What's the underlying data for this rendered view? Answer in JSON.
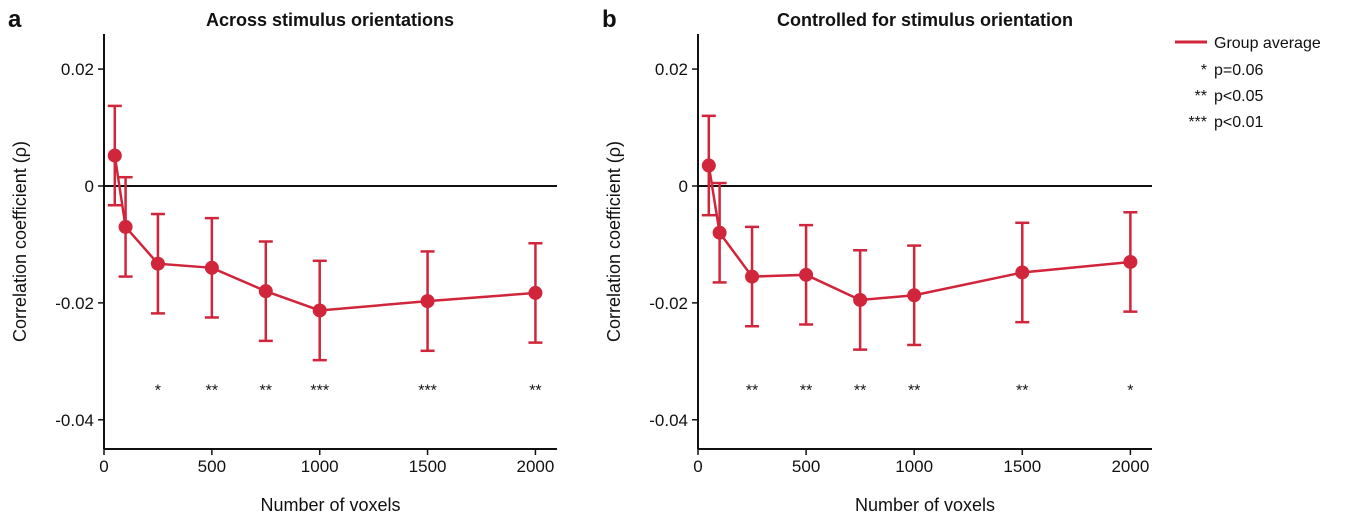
{
  "legend": {
    "series_label": "Group average",
    "sig_entries": [
      {
        "marker": "*",
        "text": "p=0.06"
      },
      {
        "marker": "**",
        "text": "p<0.05"
      },
      {
        "marker": "***",
        "text": "p<0.01"
      }
    ]
  },
  "colors": {
    "series": "#d0253a",
    "axis": "#111111"
  },
  "chart_data": [
    {
      "type": "line",
      "panel_letter": "a",
      "title": "Across stimulus orientations",
      "xlabel": "Number of voxels",
      "ylabel": "Correlation coefficient (ρ)",
      "xlim": [
        0,
        2100
      ],
      "ylim": [
        -0.045,
        0.026
      ],
      "xticks": [
        0,
        500,
        1000,
        1500,
        2000
      ],
      "yticks": [
        0.02,
        0,
        -0.02,
        -0.04
      ],
      "ytick_labels": [
        "0.02",
        "0",
        "-0.02",
        "-0.04"
      ],
      "zero_line": true,
      "series": [
        {
          "name": "Group average",
          "x": [
            50,
            100,
            250,
            500,
            750,
            1000,
            1500,
            2000
          ],
          "y": [
            0.0052,
            -0.007,
            -0.0133,
            -0.014,
            -0.018,
            -0.0213,
            -0.0197,
            -0.0183
          ],
          "error": [
            0.0085,
            0.0085,
            0.0085,
            0.0085,
            0.0085,
            0.0085,
            0.0085,
            0.0085
          ]
        }
      ],
      "significance": [
        {
          "x": 250,
          "label": "*"
        },
        {
          "x": 500,
          "label": "**"
        },
        {
          "x": 750,
          "label": "**"
        },
        {
          "x": 1000,
          "label": "***"
        },
        {
          "x": 1500,
          "label": "***"
        },
        {
          "x": 2000,
          "label": "**"
        }
      ],
      "significance_y": -0.0345
    },
    {
      "type": "line",
      "panel_letter": "b",
      "title": "Controlled for stimulus orientation",
      "xlabel": "Number of voxels",
      "ylabel": "Correlation coefficient (ρ)",
      "xlim": [
        0,
        2100
      ],
      "ylim": [
        -0.045,
        0.026
      ],
      "xticks": [
        0,
        500,
        1000,
        1500,
        2000
      ],
      "yticks": [
        0.02,
        0,
        -0.02,
        -0.04
      ],
      "ytick_labels": [
        "0.02",
        "0",
        "-0.02",
        "-0.04"
      ],
      "zero_line": true,
      "series": [
        {
          "name": "Group average",
          "x": [
            50,
            100,
            250,
            500,
            750,
            1000,
            1500,
            2000
          ],
          "y": [
            0.0035,
            -0.008,
            -0.0155,
            -0.0152,
            -0.0195,
            -0.0187,
            -0.0148,
            -0.013
          ],
          "error": [
            0.0085,
            0.0085,
            0.0085,
            0.0085,
            0.0085,
            0.0085,
            0.0085,
            0.0085
          ]
        }
      ],
      "significance": [
        {
          "x": 250,
          "label": "**"
        },
        {
          "x": 500,
          "label": "**"
        },
        {
          "x": 750,
          "label": "**"
        },
        {
          "x": 1000,
          "label": "**"
        },
        {
          "x": 1500,
          "label": "**"
        },
        {
          "x": 2000,
          "label": "*"
        }
      ],
      "significance_y": -0.0345
    }
  ]
}
